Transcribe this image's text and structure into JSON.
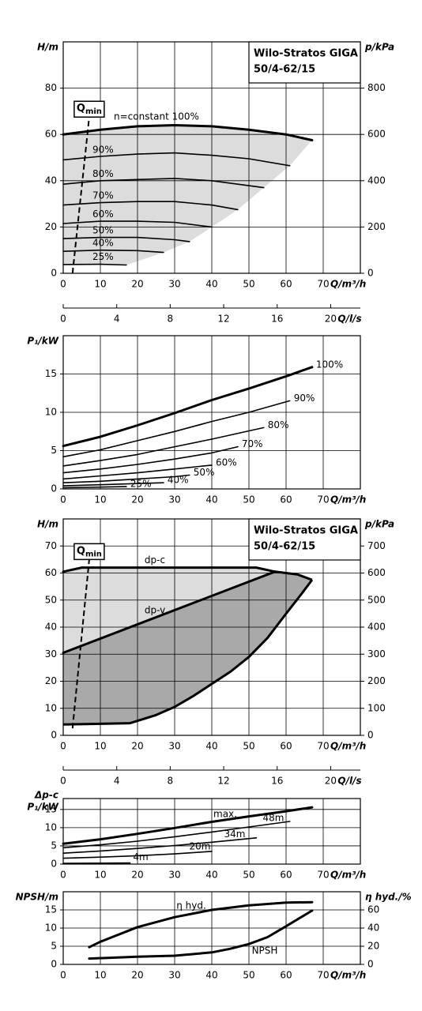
{
  "chart_data": [
    {
      "type": "line",
      "title": "Wilo-Stratos GIGA",
      "subtitle": "50/4-62/15",
      "xlabel": "Q/m³/h",
      "ylabel": "H/m",
      "y2label": "p/kPa",
      "x2label": "Q/l/s",
      "xlim": [
        0,
        80
      ],
      "xticks": [
        0,
        10,
        20,
        30,
        40,
        50,
        60,
        70
      ],
      "ylim": [
        0,
        100
      ],
      "yticks": [
        0,
        20,
        40,
        60,
        80
      ],
      "y2lim": [
        0,
        1000
      ],
      "y2ticks": [
        0,
        200,
        400,
        600,
        800
      ],
      "x2lim": [
        0,
        22.22
      ],
      "x2ticks": [
        0,
        4,
        8,
        12,
        16,
        20
      ],
      "grid": true,
      "color": "#000000",
      "area_color": "#dcdcdc",
      "qmin": {
        "label": "Q",
        "sub": "min",
        "x": [
          2.5,
          7
        ],
        "y": [
          0,
          67.5
        ]
      },
      "series": [
        {
          "name": "n=constant 100%",
          "x": [
            0,
            10,
            20,
            30,
            40,
            50,
            60,
            67
          ],
          "values": [
            60,
            62,
            63.5,
            64,
            63.5,
            62,
            60,
            57.5
          ]
        },
        {
          "name": "90%",
          "x": [
            0,
            10,
            20,
            30,
            40,
            50,
            61
          ],
          "values": [
            49,
            50.5,
            51.5,
            52,
            51,
            49.5,
            46.5
          ]
        },
        {
          "name": "80%",
          "x": [
            0,
            10,
            20,
            30,
            40,
            54
          ],
          "values": [
            38.5,
            40,
            40.5,
            41,
            40,
            37
          ]
        },
        {
          "name": "70%",
          "x": [
            0,
            10,
            20,
            30,
            40,
            47
          ],
          "values": [
            29.5,
            30.5,
            31,
            31,
            29.5,
            27.5
          ]
        },
        {
          "name": "60%",
          "x": [
            0,
            10,
            20,
            30,
            40
          ],
          "values": [
            21.5,
            22.5,
            22.5,
            22,
            20
          ]
        },
        {
          "name": "50%",
          "x": [
            0,
            10,
            20,
            30,
            34
          ],
          "values": [
            15,
            15.5,
            15.5,
            14.5,
            13.7
          ]
        },
        {
          "name": "40%",
          "x": [
            0,
            10,
            20,
            27
          ],
          "values": [
            9.5,
            10,
            9.8,
            9
          ]
        },
        {
          "name": "25%",
          "x": [
            0,
            10,
            17
          ],
          "values": [
            3.8,
            3.9,
            3.6
          ]
        }
      ]
    },
    {
      "type": "line",
      "xlabel": "Q/m³/h",
      "ylabel": "P₁/kW",
      "xlim": [
        0,
        80
      ],
      "xticks": [
        0,
        10,
        20,
        30,
        40,
        50,
        60,
        70
      ],
      "ylim": [
        0,
        20
      ],
      "yticks": [
        0,
        5,
        10,
        15
      ],
      "grid": true,
      "color": "#000000",
      "series": [
        {
          "name": "100%",
          "x": [
            0,
            10,
            20,
            30,
            40,
            50,
            60,
            67
          ],
          "values": [
            5.6,
            6.8,
            8.3,
            9.9,
            11.6,
            13.1,
            14.7,
            15.9
          ]
        },
        {
          "name": "90%",
          "x": [
            0,
            10,
            20,
            30,
            40,
            50,
            61
          ],
          "values": [
            4.2,
            5.1,
            6.3,
            7.5,
            8.8,
            10,
            11.5
          ]
        },
        {
          "name": "80%",
          "x": [
            0,
            10,
            20,
            30,
            40,
            54
          ],
          "values": [
            3,
            3.7,
            4.5,
            5.5,
            6.5,
            8
          ]
        },
        {
          "name": "70%",
          "x": [
            0,
            10,
            20,
            30,
            40,
            47
          ],
          "values": [
            2.1,
            2.6,
            3.2,
            3.9,
            4.7,
            5.5
          ]
        },
        {
          "name": "60%",
          "x": [
            0,
            10,
            20,
            30,
            40
          ],
          "values": [
            1.3,
            1.7,
            2.1,
            2.6,
            3.1
          ]
        },
        {
          "name": "50%",
          "x": [
            0,
            10,
            20,
            30,
            34
          ],
          "values": [
            0.8,
            1,
            1.3,
            1.6,
            1.8
          ]
        },
        {
          "name": "40%",
          "x": [
            0,
            10,
            20,
            27
          ],
          "values": [
            0.4,
            0.55,
            0.7,
            0.8
          ]
        },
        {
          "name": "25%",
          "x": [
            0,
            17
          ],
          "values": [
            0.15,
            0.3
          ]
        }
      ]
    },
    {
      "type": "line",
      "title": "Wilo-Stratos GIGA",
      "subtitle": "50/4-62/15",
      "xlabel": "Q/m³/h",
      "ylabel": "H/m",
      "y2label": "p/kPa",
      "x2label": "Q/l/s",
      "xlim": [
        0,
        80
      ],
      "xticks": [
        0,
        10,
        20,
        30,
        40,
        50,
        60,
        70
      ],
      "ylim": [
        0,
        80
      ],
      "yticks": [
        0,
        10,
        20,
        30,
        40,
        50,
        60,
        70
      ],
      "y2lim": [
        0,
        800
      ],
      "y2ticks": [
        0,
        100,
        200,
        300,
        400,
        500,
        600,
        700
      ],
      "x2lim": [
        0,
        22.22
      ],
      "x2ticks": [
        0,
        4,
        8,
        12,
        16,
        20
      ],
      "grid": true,
      "color": "#000000",
      "area_colors": [
        "#dcdcdc",
        "#a9a9a9"
      ],
      "qmin": {
        "label": "Q",
        "sub": "min",
        "x": [
          2.5,
          7
        ],
        "y": [
          2.6,
          65
        ]
      },
      "series": [
        {
          "name": "dp-c",
          "x": [
            0,
            5,
            52,
            57
          ],
          "values": [
            60.5,
            62,
            62,
            60.5
          ]
        },
        {
          "name": "dp-v",
          "x": [
            0,
            57
          ],
          "values": [
            30.5,
            60.5
          ]
        }
      ],
      "max_curve": {
        "x": [
          57,
          63,
          67
        ],
        "values": [
          60.5,
          59.5,
          57.5
        ]
      },
      "min_curve": {
        "x": [
          67,
          64,
          60,
          55,
          50,
          45,
          40,
          35,
          30,
          25,
          18,
          0
        ],
        "values": [
          57.5,
          52,
          45,
          36,
          29,
          23.5,
          19,
          14.5,
          10.5,
          7.5,
          4.5,
          4
        ]
      }
    },
    {
      "type": "line",
      "xlabel": "Q/m³/h",
      "ylabel": [
        "Δp-c",
        "P₁/kW"
      ],
      "xlim": [
        0,
        80
      ],
      "xticks": [
        0,
        10,
        20,
        30,
        40,
        50,
        60,
        70
      ],
      "ylim": [
        0,
        18
      ],
      "yticks": [
        0,
        5,
        10,
        15
      ],
      "grid": true,
      "color": "#000000",
      "series": [
        {
          "name": "max.",
          "x": [
            0,
            10,
            20,
            30,
            40,
            50,
            60,
            67
          ],
          "values": [
            5.6,
            6.8,
            8.3,
            9.9,
            11.6,
            13.1,
            14.5,
            15.6
          ]
        },
        {
          "name": "48m",
          "x": [
            0,
            10,
            20,
            30,
            40,
            50,
            61
          ],
          "values": [
            4.5,
            5.3,
            6.3,
            7.5,
            8.8,
            10.2,
            11.7
          ]
        },
        {
          "name": "34m",
          "x": [
            0,
            10,
            20,
            30,
            40,
            52
          ],
          "values": [
            3,
            3.6,
            4.3,
            5.1,
            6,
            7.2
          ]
        },
        {
          "name": "20m",
          "x": [
            0,
            10,
            20,
            30,
            40
          ],
          "values": [
            1.6,
            1.9,
            2.3,
            2.8,
            3.5
          ]
        },
        {
          "name": "4m",
          "x": [
            0,
            18
          ],
          "values": [
            0.2,
            0.3
          ]
        }
      ]
    },
    {
      "type": "line",
      "xlabel": "Q/m³/h",
      "ylabel": "NPSH/m",
      "y2label": "η hyd./%",
      "xlim": [
        0,
        80
      ],
      "xticks": [
        0,
        10,
        20,
        30,
        40,
        50,
        60,
        70
      ],
      "ylim": [
        0,
        20
      ],
      "yticks": [
        0,
        5,
        10,
        15
      ],
      "y2lim": [
        0,
        80
      ],
      "y2ticks": [
        0,
        20,
        40,
        60
      ],
      "grid": true,
      "color": "#000000",
      "series": [
        {
          "name": "η hyd.",
          "axis": "y2",
          "x": [
            7,
            10,
            20,
            30,
            40,
            50,
            60,
            67
          ],
          "values": [
            19,
            25,
            41,
            52,
            60,
            65,
            68,
            68.5
          ]
        },
        {
          "name": "NPSH",
          "x": [
            7,
            20,
            30,
            40,
            45,
            50,
            55,
            60,
            67
          ],
          "values": [
            1.6,
            2.1,
            2.4,
            3.3,
            4.3,
            5.6,
            7.5,
            10.5,
            14.8
          ]
        }
      ]
    }
  ]
}
